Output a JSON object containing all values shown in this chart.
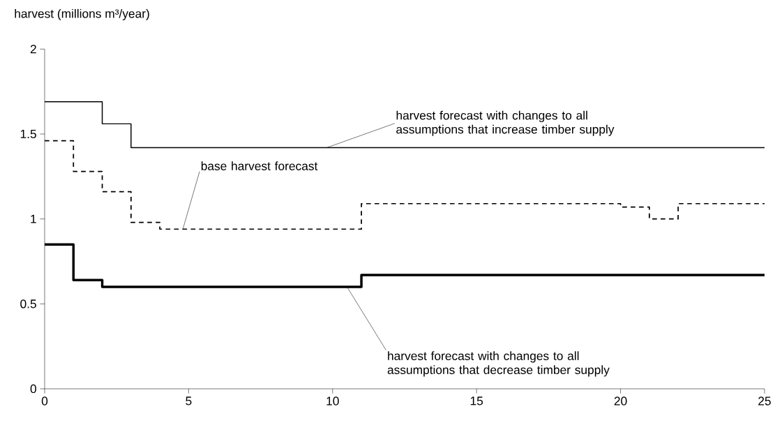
{
  "chart_data": {
    "type": "step",
    "ylabel": "harvest (millions m³/year)",
    "xlim": [
      0,
      25
    ],
    "ylim": [
      0,
      2
    ],
    "xticks": [
      0,
      5,
      10,
      15,
      20,
      25
    ],
    "yticks": [
      0,
      0.5,
      1,
      1.5,
      2
    ],
    "grid": false,
    "marker": "none",
    "series": [
      {
        "color": "#000000",
        "line_style": "solid",
        "x": [
          0,
          2,
          3,
          25
        ],
        "values": [
          1.69,
          1.56,
          1.42,
          1.42
        ]
      },
      {
        "color": "#000000",
        "line_style": "dashed",
        "x": [
          0,
          1,
          2,
          3,
          4,
          11,
          20,
          21,
          22,
          25
        ],
        "values": [
          1.46,
          1.28,
          1.16,
          0.98,
          0.94,
          1.09,
          1.07,
          1.0,
          1.09,
          1.09
        ]
      },
      {
        "color": "#000000",
        "line_style": "solid",
        "x": [
          0,
          1,
          2,
          11,
          25
        ],
        "values": [
          0.85,
          0.64,
          0.6,
          0.67,
          0.67
        ]
      }
    ],
    "annotations": [
      {
        "text": "harvest forecast with changes to all assumptions that increase timber supply",
        "x": 9.8,
        "y": 1.42
      },
      {
        "text": "base harvest forecast",
        "x": 4.8,
        "y": 0.94
      },
      {
        "text": "harvest forecast with changes to all assumptions that decrease timber supply",
        "x": 10.5,
        "y": 0.6
      }
    ]
  }
}
